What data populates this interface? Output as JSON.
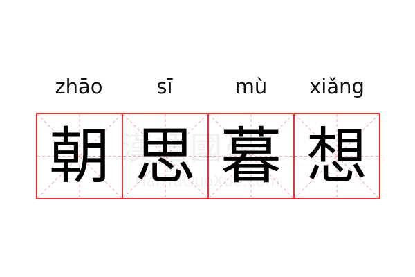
{
  "syllables": [
    {
      "pinyin": "zhāo",
      "char": "朝"
    },
    {
      "pinyin": "sī",
      "char": "思"
    },
    {
      "pinyin": "mù",
      "char": "暮"
    },
    {
      "pinyin": "xiǎng",
      "char": "想"
    }
  ],
  "watermark": {
    "chars": "漢語國學",
    "site": "HanYuGuoXue.com"
  },
  "colors": {
    "grid": "#e53333",
    "guide": "#f0a0a0"
  }
}
